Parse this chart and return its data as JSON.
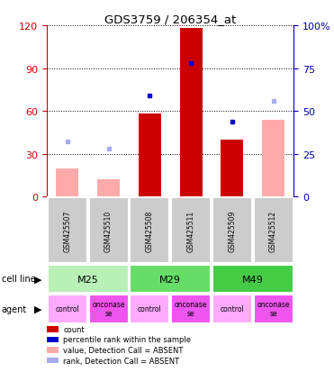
{
  "title": "GDS3759 / 206354_at",
  "samples": [
    "GSM425507",
    "GSM425510",
    "GSM425508",
    "GSM425511",
    "GSM425509",
    "GSM425512"
  ],
  "red_bars": [
    null,
    null,
    58,
    118,
    40,
    null
  ],
  "pink_bars": [
    20,
    12,
    null,
    null,
    null,
    54
  ],
  "blue_markers": [
    null,
    null,
    59,
    78,
    44,
    null
  ],
  "lightblue_markers": [
    32,
    28,
    null,
    null,
    null,
    56
  ],
  "left_ylim": [
    0,
    120
  ],
  "right_ylim": [
    0,
    100
  ],
  "left_yticks": [
    0,
    30,
    60,
    90,
    120
  ],
  "right_yticks": [
    0,
    25,
    50,
    75,
    100
  ],
  "right_yticklabels": [
    "0",
    "25",
    "50",
    "75",
    "100%"
  ],
  "cell_line_groups": [
    {
      "label": "M25",
      "cols": [
        0,
        1
      ],
      "color": "#b8f0b8"
    },
    {
      "label": "M29",
      "cols": [
        2,
        3
      ],
      "color": "#66dd66"
    },
    {
      "label": "M49",
      "cols": [
        4,
        5
      ],
      "color": "#44cc44"
    }
  ],
  "agent_labels": [
    "control",
    "onconase\nse",
    "control",
    "onconase\nse",
    "control",
    "onconase\nse"
  ],
  "agent_colors": [
    "#ffaaff",
    "#ee55ee",
    "#ffaaff",
    "#ee55ee",
    "#ffaaff",
    "#ee55ee"
  ],
  "red_color": "#cc0000",
  "pink_color": "#ffaaaa",
  "blue_color": "#0000cc",
  "lightblue_color": "#aaaaee",
  "bar_width": 0.55,
  "legend_items": [
    {
      "color": "#cc0000",
      "label": "count"
    },
    {
      "color": "#0000cc",
      "label": "percentile rank within the sample"
    },
    {
      "color": "#ffaaaa",
      "label": "value, Detection Call = ABSENT"
    },
    {
      "color": "#aaaaee",
      "label": "rank, Detection Call = ABSENT"
    }
  ],
  "left_axis_color": "#cc0000",
  "right_axis_color": "#0000aa",
  "bg_color": "#cccccc",
  "plot_bg": "#ffffff",
  "cell_line_label": "cell line",
  "agent_label": "agent"
}
